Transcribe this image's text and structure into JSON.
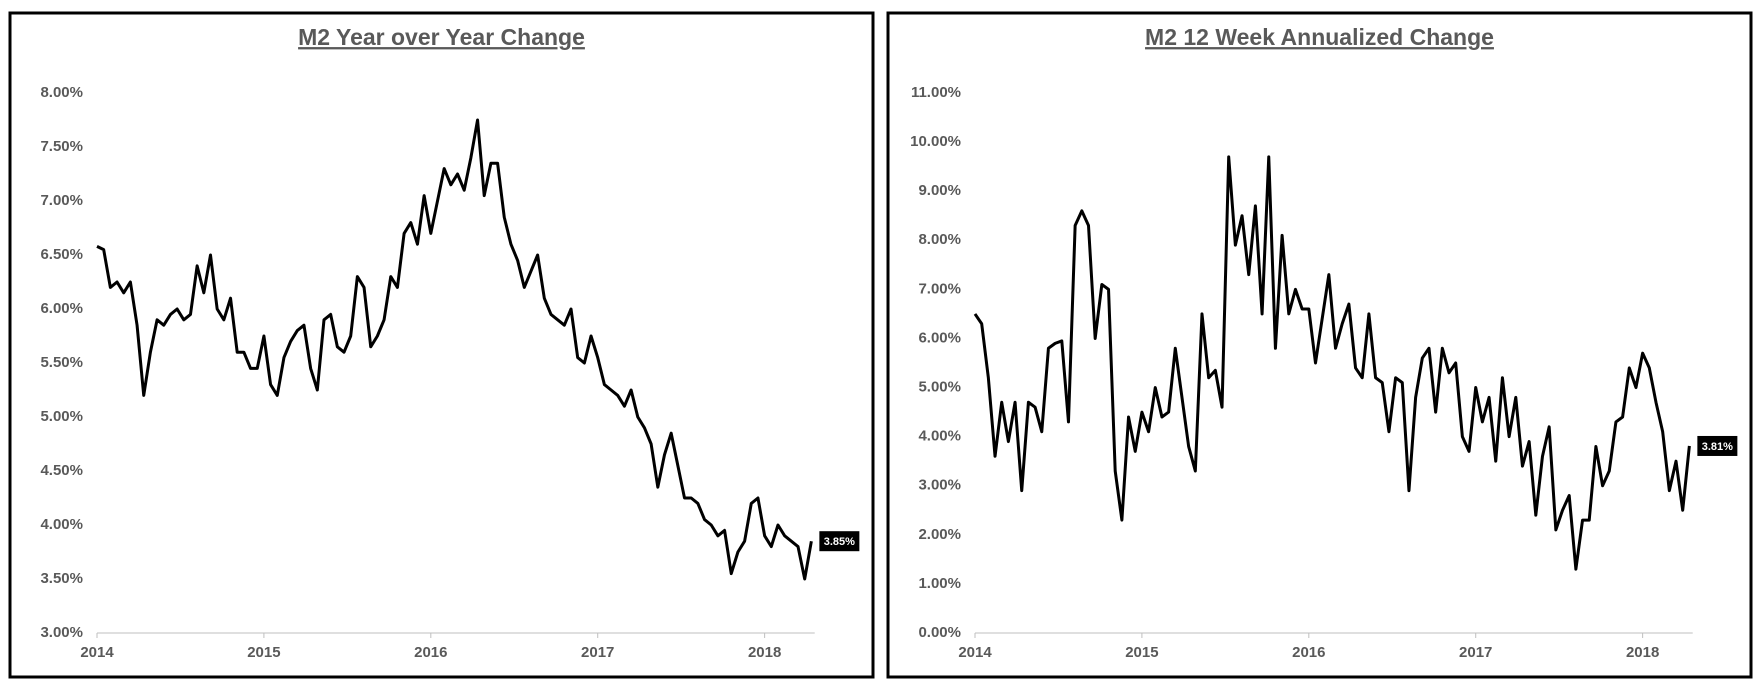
{
  "chart_data": [
    {
      "type": "line",
      "title": "M2 Year over Year Change",
      "color": "#000000",
      "end_label": "3.85%",
      "x": [
        2014,
        2014.04,
        2014.08,
        2014.12,
        2014.16,
        2014.2,
        2014.24,
        2014.28,
        2014.32,
        2014.36,
        2014.4,
        2014.44,
        2014.48,
        2014.52,
        2014.56,
        2014.6,
        2014.64,
        2014.68,
        2014.72,
        2014.76,
        2014.8,
        2014.84,
        2014.88,
        2014.92,
        2014.96,
        2015,
        2015.04,
        2015.08,
        2015.12,
        2015.16,
        2015.2,
        2015.24,
        2015.28,
        2015.32,
        2015.36,
        2015.4,
        2015.44,
        2015.48,
        2015.52,
        2015.56,
        2015.6,
        2015.64,
        2015.68,
        2015.72,
        2015.76,
        2015.8,
        2015.84,
        2015.88,
        2015.92,
        2015.96,
        2016,
        2016.04,
        2016.08,
        2016.12,
        2016.16,
        2016.2,
        2016.24,
        2016.28,
        2016.32,
        2016.36,
        2016.4,
        2016.44,
        2016.48,
        2016.52,
        2016.56,
        2016.6,
        2016.64,
        2016.68,
        2016.72,
        2016.76,
        2016.8,
        2016.84,
        2016.88,
        2016.92,
        2016.96,
        2017,
        2017.04,
        2017.08,
        2017.12,
        2017.16,
        2017.2,
        2017.24,
        2017.28,
        2017.32,
        2017.36,
        2017.4,
        2017.44,
        2017.48,
        2017.52,
        2017.56,
        2017.6,
        2017.64,
        2017.68,
        2017.72,
        2017.76,
        2017.8,
        2017.84,
        2017.88,
        2017.92,
        2017.96,
        2018,
        2018.04,
        2018.08,
        2018.12,
        2018.16,
        2018.2,
        2018.24,
        2018.28
      ],
      "values": [
        6.58,
        6.55,
        6.2,
        6.25,
        6.15,
        6.25,
        5.85,
        5.2,
        5.6,
        5.9,
        5.85,
        5.95,
        6.0,
        5.9,
        5.95,
        6.4,
        6.15,
        6.5,
        6.0,
        5.9,
        6.1,
        5.6,
        5.6,
        5.45,
        5.45,
        5.75,
        5.3,
        5.2,
        5.55,
        5.7,
        5.8,
        5.85,
        5.45,
        5.25,
        5.9,
        5.95,
        5.65,
        5.6,
        5.75,
        6.3,
        6.2,
        5.65,
        5.75,
        5.9,
        6.3,
        6.2,
        6.7,
        6.8,
        6.6,
        7.05,
        6.7,
        7.0,
        7.3,
        7.15,
        7.25,
        7.1,
        7.4,
        7.75,
        7.05,
        7.35,
        7.35,
        6.85,
        6.6,
        6.45,
        6.2,
        6.35,
        6.5,
        6.1,
        5.95,
        5.9,
        5.85,
        6.0,
        5.55,
        5.5,
        5.75,
        5.55,
        5.3,
        5.25,
        5.2,
        5.1,
        5.25,
        5.0,
        4.9,
        4.75,
        4.35,
        4.65,
        4.85,
        4.55,
        4.25,
        4.25,
        4.2,
        4.05,
        4.0,
        3.9,
        3.95,
        3.55,
        3.75,
        3.85,
        4.2,
        4.25,
        3.9,
        3.8,
        4.0,
        3.9,
        3.85,
        3.8,
        3.5,
        3.85
      ],
      "xlim": [
        2014,
        2018.3
      ],
      "xticks": [
        2014,
        2015,
        2016,
        2017,
        2018
      ],
      "ylim": [
        3,
        8
      ],
      "yticks": [
        {
          "value": 3,
          "label": "3.00%"
        },
        {
          "value": 3.5,
          "label": "3.50%"
        },
        {
          "value": 4,
          "label": "4.00%"
        },
        {
          "value": 4.5,
          "label": "4.50%"
        },
        {
          "value": 5,
          "label": "5.00%"
        },
        {
          "value": 5.5,
          "label": "5.50%"
        },
        {
          "value": 6,
          "label": "6.00%"
        },
        {
          "value": 6.5,
          "label": "6.50%"
        },
        {
          "value": 7,
          "label": "7.00%"
        },
        {
          "value": 7.5,
          "label": "7.50%"
        },
        {
          "value": 8,
          "label": "8.00%"
        }
      ]
    },
    {
      "type": "line",
      "title": "M2 12 Week Annualized Change",
      "color": "#000000",
      "end_label": "3.81%",
      "x": [
        2014,
        2014.04,
        2014.08,
        2014.12,
        2014.16,
        2014.2,
        2014.24,
        2014.28,
        2014.32,
        2014.36,
        2014.4,
        2014.44,
        2014.48,
        2014.52,
        2014.56,
        2014.6,
        2014.64,
        2014.68,
        2014.72,
        2014.76,
        2014.8,
        2014.84,
        2014.88,
        2014.92,
        2014.96,
        2015,
        2015.04,
        2015.08,
        2015.12,
        2015.16,
        2015.2,
        2015.24,
        2015.28,
        2015.32,
        2015.36,
        2015.4,
        2015.44,
        2015.48,
        2015.52,
        2015.56,
        2015.6,
        2015.64,
        2015.68,
        2015.72,
        2015.76,
        2015.8,
        2015.84,
        2015.88,
        2015.92,
        2015.96,
        2016,
        2016.04,
        2016.08,
        2016.12,
        2016.16,
        2016.2,
        2016.24,
        2016.28,
        2016.32,
        2016.36,
        2016.4,
        2016.44,
        2016.48,
        2016.52,
        2016.56,
        2016.6,
        2016.64,
        2016.68,
        2016.72,
        2016.76,
        2016.8,
        2016.84,
        2016.88,
        2016.92,
        2016.96,
        2017,
        2017.04,
        2017.08,
        2017.12,
        2017.16,
        2017.2,
        2017.24,
        2017.28,
        2017.32,
        2017.36,
        2017.4,
        2017.44,
        2017.48,
        2017.52,
        2017.56,
        2017.6,
        2017.64,
        2017.68,
        2017.72,
        2017.76,
        2017.8,
        2017.84,
        2017.88,
        2017.92,
        2017.96,
        2018,
        2018.04,
        2018.08,
        2018.12,
        2018.16,
        2018.2,
        2018.24,
        2018.28
      ],
      "values": [
        6.5,
        6.3,
        5.2,
        3.6,
        4.7,
        3.9,
        4.7,
        2.9,
        4.7,
        4.6,
        4.1,
        5.8,
        5.9,
        5.95,
        4.3,
        8.3,
        8.6,
        8.3,
        6.0,
        7.1,
        7.0,
        3.3,
        2.3,
        4.4,
        3.7,
        4.5,
        4.1,
        5.0,
        4.4,
        4.5,
        5.8,
        4.8,
        3.8,
        3.3,
        6.5,
        5.2,
        5.35,
        4.6,
        9.7,
        7.9,
        8.5,
        7.3,
        8.7,
        6.5,
        9.7,
        5.8,
        8.1,
        6.5,
        7.0,
        6.6,
        6.6,
        5.5,
        6.4,
        7.3,
        5.8,
        6.3,
        6.7,
        5.4,
        5.2,
        6.5,
        5.2,
        5.1,
        4.1,
        5.2,
        5.1,
        2.9,
        4.8,
        5.6,
        5.8,
        4.5,
        5.8,
        5.3,
        5.5,
        4.0,
        3.7,
        5.0,
        4.3,
        4.8,
        3.5,
        5.2,
        4.0,
        4.8,
        3.4,
        3.9,
        2.4,
        3.6,
        4.2,
        2.1,
        2.5,
        2.8,
        1.3,
        2.3,
        2.3,
        3.8,
        3.0,
        3.3,
        4.3,
        4.4,
        5.4,
        5.0,
        5.7,
        5.4,
        4.7,
        4.1,
        2.9,
        3.5,
        2.5,
        3.81
      ],
      "xlim": [
        2014,
        2018.3
      ],
      "xticks": [
        2014,
        2015,
        2016,
        2017,
        2018
      ],
      "ylim": [
        0,
        11
      ],
      "yticks": [
        {
          "value": 0,
          "label": "0.00%"
        },
        {
          "value": 1,
          "label": "1.00%"
        },
        {
          "value": 2,
          "label": "2.00%"
        },
        {
          "value": 3,
          "label": "3.00%"
        },
        {
          "value": 4,
          "label": "4.00%"
        },
        {
          "value": 5,
          "label": "5.00%"
        },
        {
          "value": 6,
          "label": "6.00%"
        },
        {
          "value": 7,
          "label": "7.00%"
        },
        {
          "value": 8,
          "label": "8.00%"
        },
        {
          "value": 9,
          "label": "9.00%"
        },
        {
          "value": 10,
          "label": "10.00%"
        },
        {
          "value": 11,
          "label": "11.00%"
        }
      ]
    }
  ]
}
